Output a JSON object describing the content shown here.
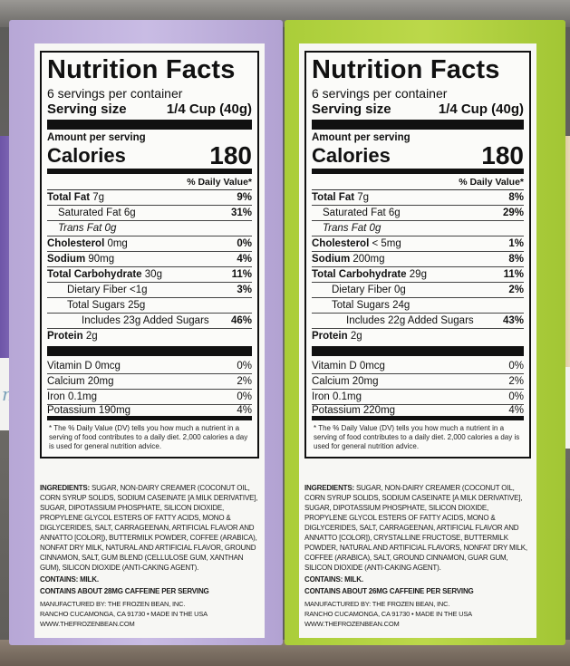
{
  "labels": [
    {
      "title": "Nutrition Facts",
      "servings_per_container": "6 servings per container",
      "serving_size_label": "Serving size",
      "serving_size_value": "1/4 Cup (40g)",
      "amount_per_serving": "Amount per serving",
      "calories_label": "Calories",
      "calories_value": "180",
      "dv_header": "% Daily Value*",
      "rows": [
        {
          "name_bold": "Total Fat",
          "name": " 7g",
          "dv": "9%"
        },
        {
          "name_bold": "",
          "name": "Saturated Fat 6g",
          "dv": "31%"
        },
        {
          "name_bold": "",
          "name": "Trans Fat 0g",
          "dv": ""
        },
        {
          "name_bold": "Cholesterol",
          "name": " 0mg",
          "dv": "0%"
        },
        {
          "name_bold": "Sodium",
          "name": " 90mg",
          "dv": "4%"
        },
        {
          "name_bold": "Total Carbohydrate",
          "name": " 30g",
          "dv": "11%"
        },
        {
          "name_bold": "",
          "name": "Dietary Fiber <1g",
          "dv": "3%"
        },
        {
          "name_bold": "",
          "name": "Total Sugars 25g",
          "dv": ""
        },
        {
          "name_bold": "",
          "name": "Includes 23g Added Sugars",
          "dv": "46%"
        },
        {
          "name_bold": "Protein",
          "name": " 2g",
          "dv": ""
        }
      ],
      "vitamins": [
        {
          "name": "Vitamin D 0mcg",
          "dv": "0%"
        },
        {
          "name": "Calcium 20mg",
          "dv": "2%"
        },
        {
          "name": "Iron 0.1mg",
          "dv": "0%"
        },
        {
          "name": "Potassium 190mg",
          "dv": "4%"
        }
      ],
      "footnote": "* The % Daily Value (DV) tells you how much a nutrient in a serving of food contributes to a daily diet. 2,000 calories a day is used for general nutrition advice.",
      "ingredients_label": "Ingredients:",
      "ingredients": "Sugar, non-dairy creamer (coconut oil, corn syrup solids, sodium caseinate [a milk derivative], sugar, dipotassium phosphate, silicon dioxide, propylene glycol esters of fatty acids, mono & diglycerides, salt, carrageenan, artificial flavor and annatto [color]), buttermilk powder, coffee (arabica), nonfat dry milk, natural and artificial flavor, ground cinnamon, salt, gum blend (cellulose gum, xanthan gum), silicon dioxide (anti-caking agent).",
      "contains": "Contains: Milk.",
      "caffeine": "Contains about 28mg caffeine per serving",
      "mfg_line1": "Manufactured by: The Frozen Bean, Inc.",
      "mfg_line2": "Rancho Cucamonga, CA 91730 • Made in the USA",
      "mfg_line3": "www.thefrozenbean.com"
    },
    {
      "title": "Nutrition Facts",
      "servings_per_container": "6 servings per container",
      "serving_size_label": "Serving size",
      "serving_size_value": "1/4 Cup (40g)",
      "amount_per_serving": "Amount per serving",
      "calories_label": "Calories",
      "calories_value": "180",
      "dv_header": "% Daily Value*",
      "rows": [
        {
          "name_bold": "Total Fat",
          "name": " 7g",
          "dv": "8%"
        },
        {
          "name_bold": "",
          "name": "Saturated Fat 6g",
          "dv": "29%"
        },
        {
          "name_bold": "",
          "name": "Trans Fat 0g",
          "dv": ""
        },
        {
          "name_bold": "Cholesterol",
          "name": " < 5mg",
          "dv": "1%"
        },
        {
          "name_bold": "Sodium",
          "name": " 200mg",
          "dv": "8%"
        },
        {
          "name_bold": "Total Carbohydrate",
          "name": " 29g",
          "dv": "11%"
        },
        {
          "name_bold": "",
          "name": "Dietary Fiber 0g",
          "dv": "2%"
        },
        {
          "name_bold": "",
          "name": "Total Sugars 24g",
          "dv": ""
        },
        {
          "name_bold": "",
          "name": "Includes 22g Added Sugars",
          "dv": "43%"
        },
        {
          "name_bold": "Protein",
          "name": " 2g",
          "dv": ""
        }
      ],
      "vitamins": [
        {
          "name": "Vitamin D 0mcg",
          "dv": "0%"
        },
        {
          "name": "Calcium 20mg",
          "dv": "2%"
        },
        {
          "name": "Iron 0.1mg",
          "dv": "0%"
        },
        {
          "name": "Potassium 220mg",
          "dv": "4%"
        }
      ],
      "footnote": "* The % Daily Value (DV) tells you how much a nutrient in a serving of food contributes to a daily diet. 2,000 calories a day is used for general nutrition advice.",
      "ingredients_label": "Ingredients:",
      "ingredients": "Sugar, non-dairy creamer (coconut oil, corn syrup solids, sodium caseinate [a milk derivative], sugar, dipotassium phosphate, silicon dioxide, propylene glycol esters of fatty acids, mono & diglycerides, salt, carrageenan, artificial flavor and annatto [color]), crystalline fructose, buttermilk powder, natural and artificial flavors, nonfat dry milk, coffee (arabica), salt, ground cinnamon, guar gum, silicon dioxide (anti-caking agent).",
      "contains": "Contains: Milk.",
      "caffeine": "Contains about 26mg caffeine per serving",
      "mfg_line1": "Manufactured by: The Frozen Bean, Inc.",
      "mfg_line2": "Rancho Cucamonga, CA 91730 • Made in the USA",
      "mfg_line3": "www.thefrozenbean.com"
    }
  ],
  "background": {
    "left_sign_text": "mix"
  },
  "colors": {
    "purple_box": "#c0b2dd",
    "green_box": "#b4d342"
  }
}
